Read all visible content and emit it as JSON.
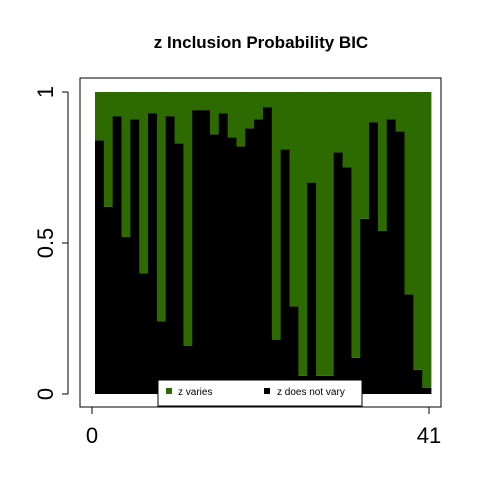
{
  "chart_data": {
    "type": "bar",
    "title": "z Inclusion Probability BIC",
    "xlabel": "",
    "ylabel": "",
    "x_ticks": [
      "0",
      "41"
    ],
    "y_ticks": [
      "0",
      "0.5",
      "1"
    ],
    "xlim": [
      0,
      41
    ],
    "ylim": [
      0,
      1
    ],
    "stacked": true,
    "series": [
      {
        "name": "z does not vary",
        "color": "#000000",
        "values": [
          0.84,
          0.62,
          0.92,
          0.52,
          0.91,
          0.4,
          0.93,
          0.24,
          0.92,
          0.83,
          0.16,
          0.94,
          0.94,
          0.86,
          0.93,
          0.85,
          0.82,
          0.88,
          0.91,
          0.95,
          0.18,
          0.81,
          0.29,
          0.06,
          0.7,
          0.06,
          0.06,
          0.8,
          0.75,
          0.12,
          0.58,
          0.9,
          0.54,
          0.91,
          0.87,
          0.33,
          0.08,
          0.02
        ]
      },
      {
        "name": "z varies",
        "color": "#2d6a00",
        "values": [
          0.16,
          0.38,
          0.08,
          0.48,
          0.09,
          0.6,
          0.07,
          0.76,
          0.08,
          0.17,
          0.84,
          0.06,
          0.06,
          0.14,
          0.07,
          0.15,
          0.18,
          0.12,
          0.09,
          0.05,
          0.82,
          0.19,
          0.71,
          0.94,
          0.3,
          0.94,
          0.94,
          0.2,
          0.25,
          0.88,
          0.42,
          0.1,
          0.46,
          0.09,
          0.13,
          0.67,
          0.92,
          0.98
        ]
      }
    ],
    "legend": {
      "placement": "bottom-center",
      "items": [
        {
          "label": "z varies",
          "color": "#2d6a00"
        },
        {
          "label": "z does not vary",
          "color": "#000000"
        }
      ]
    },
    "grid": false
  }
}
